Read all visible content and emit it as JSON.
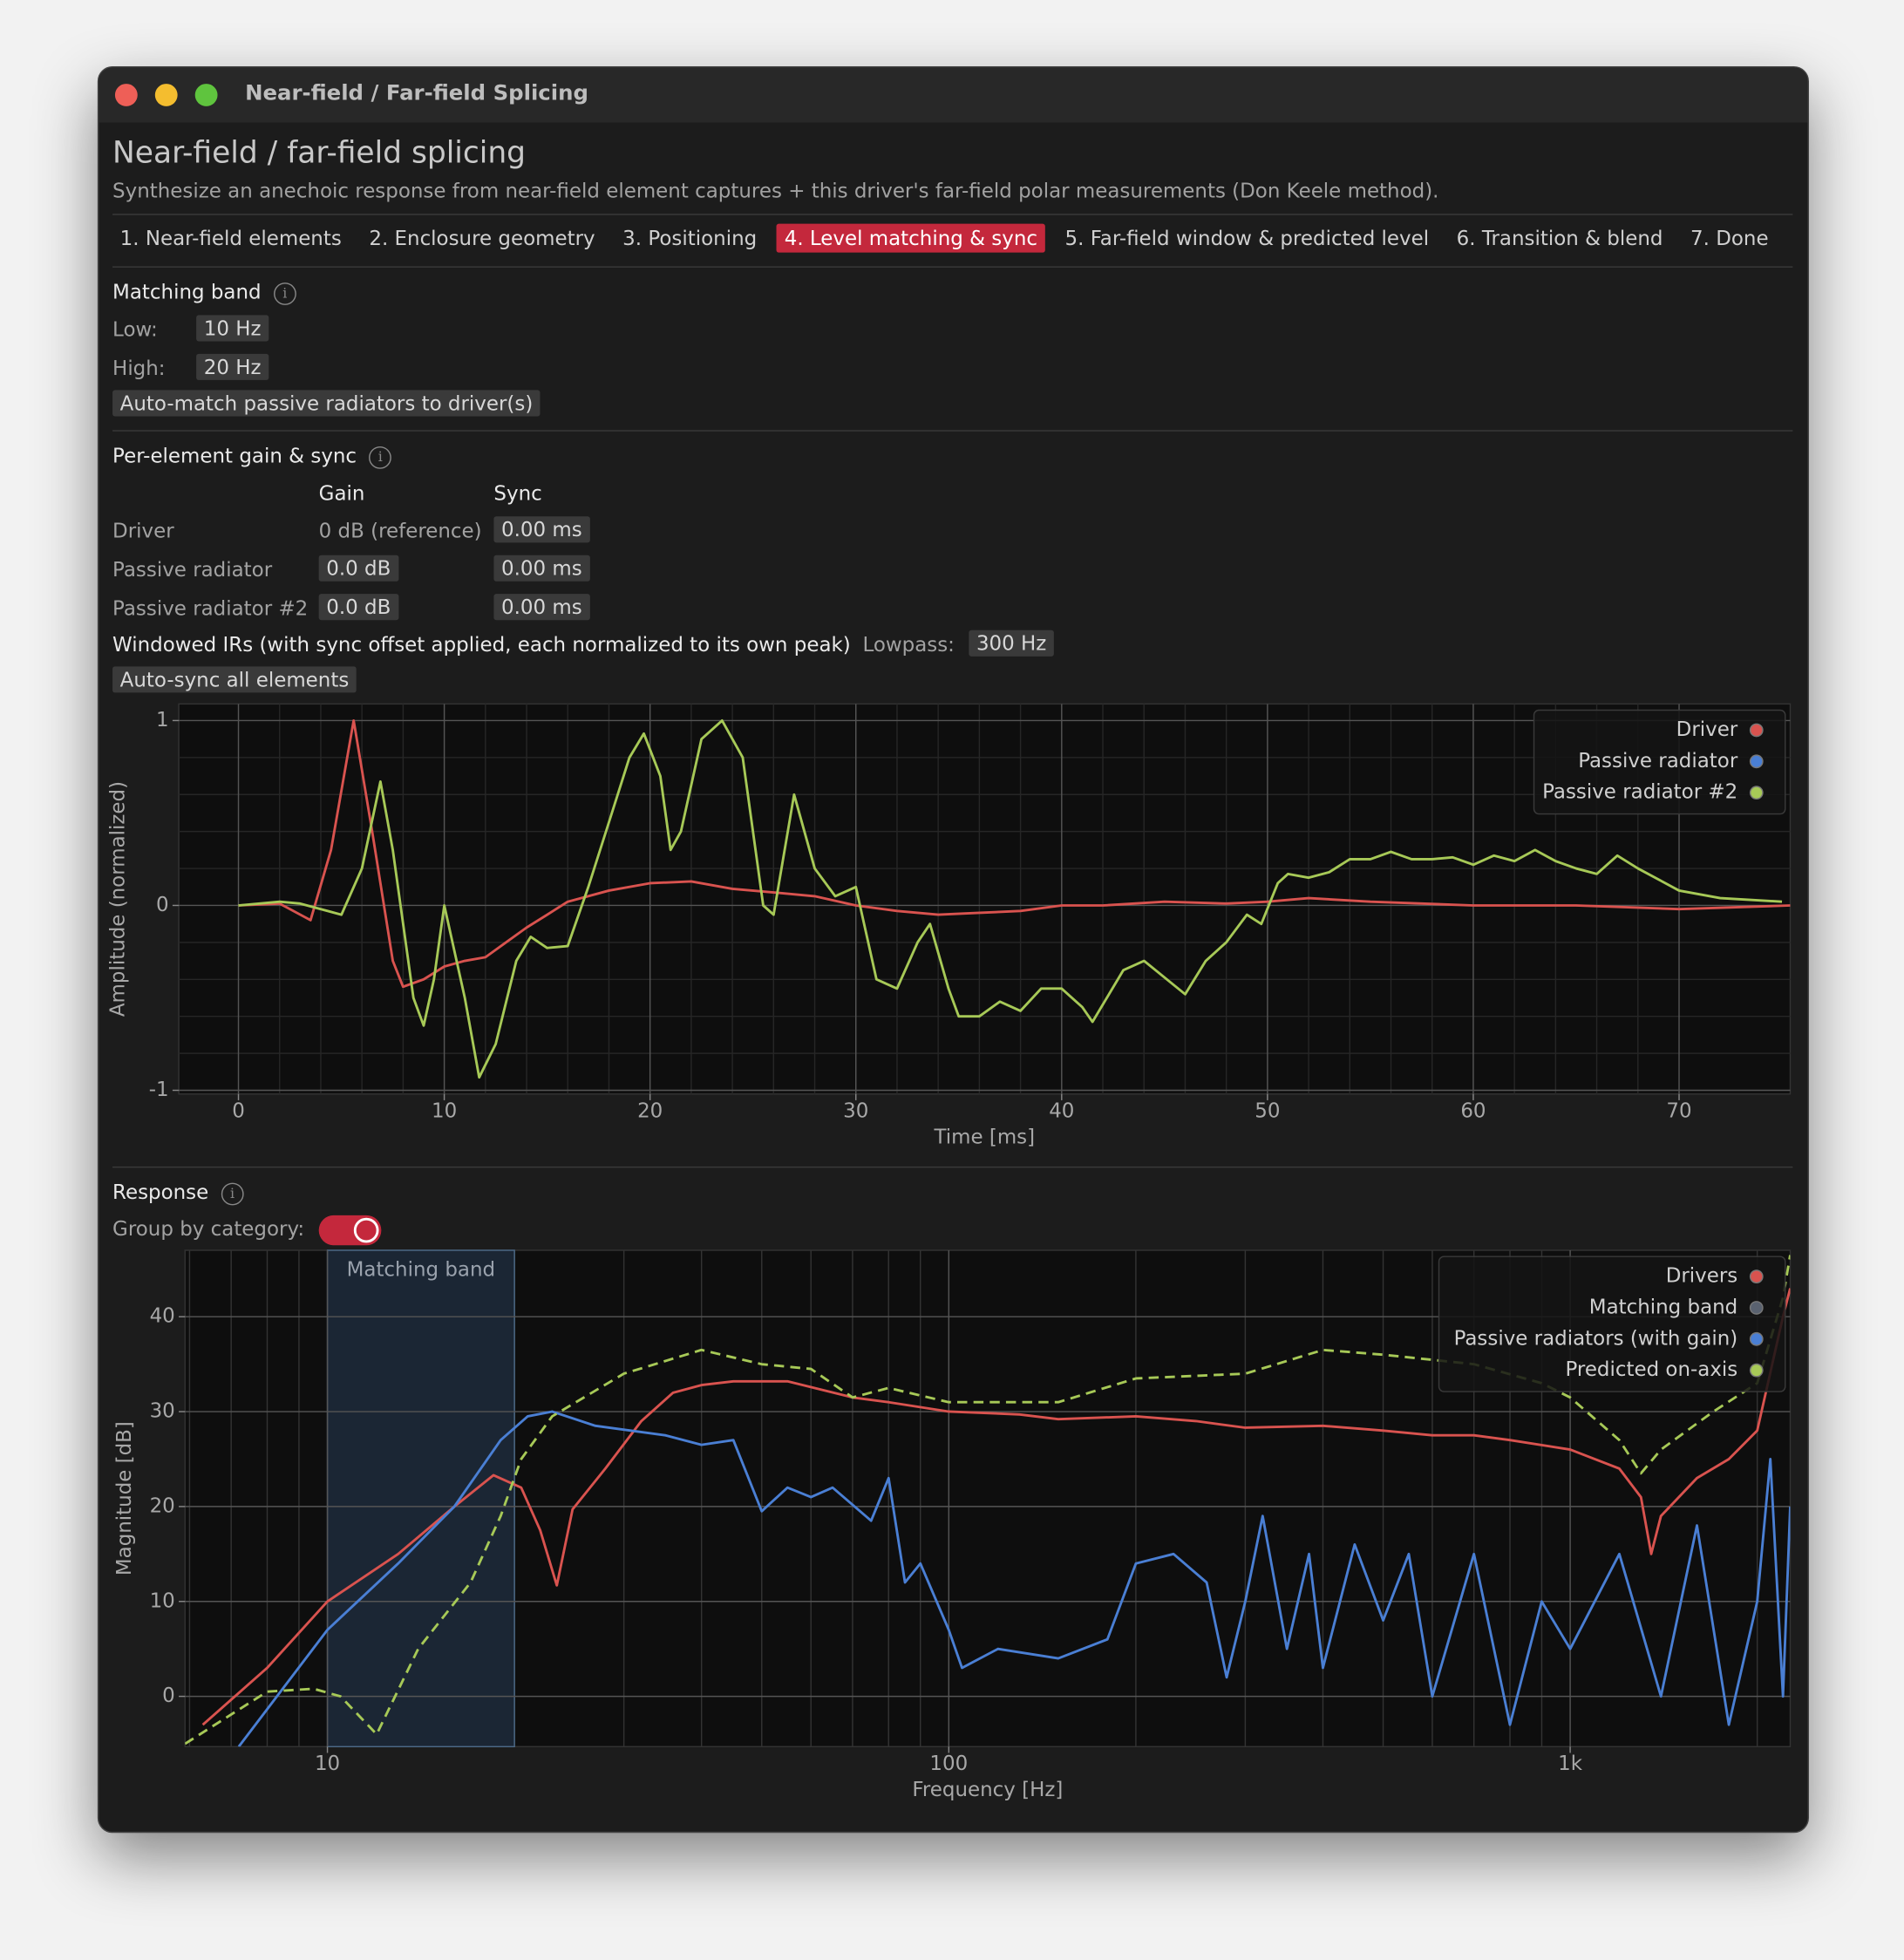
{
  "window": {
    "title": "Near-field / Far-field Splicing"
  },
  "header": {
    "title": "Near-field / far-field splicing",
    "subtitle": "Synthesize an anechoic response from near-field element captures + this driver's far-field polar measurements (Don Keele method)."
  },
  "tabs": [
    "1. Near-field elements",
    "2. Enclosure geometry",
    "3. Positioning",
    "4. Level matching & sync",
    "5. Far-field window & predicted level",
    "6. Transition & blend",
    "7. Done"
  ],
  "active_tab": 3,
  "matching_band": {
    "title": "Matching band",
    "low_label": "Low:",
    "low": "10 Hz",
    "high_label": "High:",
    "high": "20 Hz",
    "button": "Auto-match passive radiators to driver(s)"
  },
  "per_element": {
    "title": "Per-element gain & sync",
    "columns": [
      "Gain",
      "Sync"
    ],
    "rows": [
      [
        "Driver",
        "0 dB (reference)",
        "0.00 ms"
      ],
      [
        "Passive radiator",
        "0.0 dB",
        "0.00 ms"
      ],
      [
        "Passive radiator #2",
        "0.0 dB",
        "0.00 ms"
      ]
    ]
  },
  "windowed": {
    "title": "Windowed IRs (with sync offset applied, each normalized to its own peak)",
    "lowpass_label": "Lowpass:",
    "lowpass": "300 Hz",
    "button": "Auto-sync all elements"
  },
  "ir_chart": {
    "type": "line",
    "xlabel": "Time [ms]",
    "ylabel": "Amplitude (normalized)",
    "xlim": [
      -2.9,
      75.4
    ],
    "ylim": [
      -1.02,
      1.09
    ],
    "xticks": [
      0,
      10,
      20,
      30,
      40,
      50,
      60,
      70
    ],
    "yticks": [
      -1,
      0,
      1
    ],
    "grid": true,
    "minor_grid": true,
    "legend": "top-right",
    "series": [
      {
        "name": "Driver",
        "color": "#d9534f",
        "x": [
          0,
          2,
          3.5,
          4.5,
          5.6,
          6.5,
          7.5,
          8,
          9,
          10,
          11,
          12,
          13,
          14,
          15,
          16,
          18,
          20,
          22,
          24,
          26,
          28,
          30,
          32,
          34,
          36,
          38,
          40,
          42,
          45,
          48,
          50,
          52,
          55,
          60,
          65,
          70,
          75.4
        ],
        "values": [
          0,
          0.01,
          -0.08,
          0.3,
          1.0,
          0.4,
          -0.3,
          -0.44,
          -0.4,
          -0.33,
          -0.3,
          -0.28,
          -0.2,
          -0.12,
          -0.05,
          0.02,
          0.08,
          0.12,
          0.13,
          0.09,
          0.07,
          0.05,
          0.0,
          -0.03,
          -0.05,
          -0.04,
          -0.03,
          0,
          0,
          0.02,
          0.01,
          0.02,
          0.04,
          0.02,
          0,
          0,
          -0.02,
          0
        ]
      },
      {
        "name": "Passive radiator",
        "color": "#4a7fd4",
        "x": [],
        "values": []
      },
      {
        "name": "Passive radiator #2",
        "color": "#a7c957",
        "x": [
          0,
          2,
          3,
          5,
          6,
          6.9,
          7.5,
          8.5,
          9,
          9.5,
          10,
          11,
          11.7,
          12.5,
          13.5,
          14.2,
          15,
          16,
          17,
          18,
          19,
          19.7,
          20.5,
          21,
          21.5,
          22.5,
          23.5,
          24.5,
          25.5,
          26,
          27,
          28,
          29,
          30,
          31,
          32,
          33,
          33.6,
          34.5,
          35,
          36,
          37,
          38,
          39,
          40,
          41,
          41.5,
          43,
          44,
          46,
          47,
          48,
          49,
          49.7,
          50.5,
          51,
          52,
          53,
          54,
          55,
          56,
          57,
          58,
          59,
          60,
          61,
          62,
          63,
          64,
          65,
          66,
          67,
          68,
          70,
          72,
          75
        ],
        "values": [
          0,
          0.02,
          0.01,
          -0.05,
          0.2,
          0.67,
          0.3,
          -0.5,
          -0.65,
          -0.4,
          0,
          -0.5,
          -0.93,
          -0.75,
          -0.3,
          -0.17,
          -0.23,
          -0.22,
          0.1,
          0.45,
          0.8,
          0.93,
          0.7,
          0.3,
          0.4,
          0.9,
          1.0,
          0.8,
          0,
          -0.05,
          0.6,
          0.2,
          0.05,
          0.1,
          -0.4,
          -0.45,
          -0.2,
          -0.1,
          -0.45,
          -0.6,
          -0.6,
          -0.52,
          -0.57,
          -0.45,
          -0.45,
          -0.55,
          -0.63,
          -0.35,
          -0.3,
          -0.48,
          -0.3,
          -0.2,
          -0.05,
          -0.1,
          0.12,
          0.17,
          0.15,
          0.18,
          0.25,
          0.25,
          0.29,
          0.25,
          0.25,
          0.26,
          0.22,
          0.27,
          0.24,
          0.3,
          0.24,
          0.2,
          0.17,
          0.27,
          0.2,
          0.08,
          0.04,
          0.02
        ]
      }
    ]
  },
  "response": {
    "title": "Response",
    "group_label": "Group by category:",
    "group_by_category": true
  },
  "response_chart": {
    "type": "line",
    "x_scale": "log",
    "xlabel": "Frequency [Hz]",
    "ylabel": "Magnitude [dB]",
    "xlim": [
      5.9,
      2260
    ],
    "ylim": [
      -5.3,
      47
    ],
    "xticks": [
      {
        "value": 10,
        "label": "10"
      },
      {
        "value": 100,
        "label": "100"
      },
      {
        "value": 1000,
        "label": "1k"
      }
    ],
    "yticks": [
      0,
      10,
      20,
      30,
      40
    ],
    "grid": true,
    "minor_grid": true,
    "legend": "top-right",
    "band": {
      "label": "Matching band",
      "range": [
        10,
        20
      ],
      "color": "#5a6270"
    },
    "series": [
      {
        "name": "Drivers",
        "color": "#d9534f",
        "x": [
          6.3,
          8,
          10,
          13,
          16,
          18.5,
          20.5,
          22,
          23.4,
          24.8,
          28,
          32,
          36,
          40,
          45,
          55,
          70,
          80,
          100,
          130,
          150,
          200,
          250,
          300,
          400,
          500,
          600,
          700,
          800,
          1000,
          1200,
          1300,
          1350,
          1400,
          1600,
          1800,
          2000,
          2200,
          2260
        ],
        "values": [
          -3,
          3,
          10,
          15,
          20,
          23.3,
          22,
          17.5,
          11.7,
          19.7,
          24,
          29,
          32,
          32.8,
          33.2,
          33.2,
          31.5,
          31,
          30,
          29.7,
          29.2,
          29.5,
          29,
          28.3,
          28.5,
          28,
          27.5,
          27.5,
          27,
          26,
          24,
          21,
          15,
          19,
          23,
          25,
          28,
          40,
          43
        ]
      },
      {
        "name": "Passive radiators (with gain)",
        "color": "#4a7fd4",
        "x": [
          7.2,
          10,
          13,
          16,
          19,
          21,
          23,
          27,
          35,
          40,
          45,
          50,
          55,
          60,
          65,
          75,
          80,
          85,
          90,
          100,
          105,
          120,
          150,
          180,
          200,
          230,
          260,
          280,
          300,
          320,
          350,
          380,
          400,
          450,
          500,
          550,
          600,
          700,
          800,
          900,
          1000,
          1200,
          1400,
          1600,
          1800,
          2000,
          2100,
          2200,
          2260
        ],
        "values": [
          -5.3,
          7,
          14,
          20,
          27,
          29.5,
          30,
          28.5,
          27.5,
          26.5,
          27,
          19.5,
          22,
          21,
          22,
          18.5,
          23,
          12,
          14,
          7,
          3,
          5,
          4,
          6,
          14,
          15,
          12,
          2,
          10,
          19,
          5,
          15,
          3,
          16,
          8,
          15,
          0,
          15,
          -3,
          10,
          5,
          15,
          0,
          18,
          -3,
          10,
          25,
          0,
          20
        ]
      },
      {
        "name": "Predicted on-axis",
        "color": "#a7c957",
        "dash": true,
        "x": [
          5.9,
          8,
          9.5,
          10.5,
          12,
          14,
          17,
          19,
          20.5,
          23,
          30,
          40,
          50,
          60,
          70,
          80,
          100,
          150,
          200,
          300,
          400,
          500,
          700,
          900,
          1000,
          1200,
          1300,
          1400,
          1700,
          2000,
          2200,
          2260
        ],
        "values": [
          -5,
          0.5,
          0.8,
          0,
          -4,
          5,
          12,
          19,
          25,
          29.5,
          34,
          36.5,
          35,
          34.5,
          31.5,
          32.5,
          31,
          31,
          33.5,
          34,
          36.5,
          36,
          35,
          33,
          31.5,
          27,
          23.5,
          26,
          30,
          33,
          42,
          46.5
        ]
      }
    ]
  }
}
